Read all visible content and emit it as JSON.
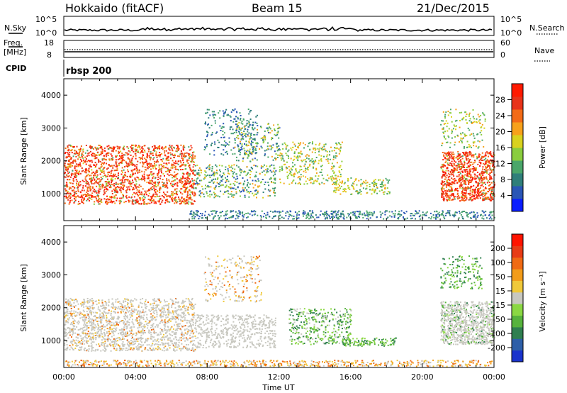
{
  "header": {
    "station": "Hokkaido (fitACF)",
    "beam": "Beam 15",
    "date": "21/Dec/2015"
  },
  "top_panels": {
    "nsky_label": "N.Sky",
    "nsky_ticks": [
      "10^5",
      "10^0"
    ],
    "nsearch_label": "N.Search",
    "freq_label_1": "Freq.",
    "freq_label_2": "[MHz]",
    "freq_ticks": [
      "18",
      "8"
    ],
    "nave_label": "Nave",
    "nave_ticks": [
      "60",
      "0"
    ],
    "cpid_label": "CPID",
    "cpid_value": "rbsp 200"
  },
  "colors": {
    "power_scale": [
      "#0a1eff",
      "#2a56b6",
      "#2f7f7a",
      "#4aa66a",
      "#8acd3e",
      "#d9d21e",
      "#f7a11b",
      "#f36b17",
      "#e8331a",
      "#ff1a00"
    ],
    "velocity_scale": [
      "#1a33cc",
      "#2e5fa8",
      "#2f7f50",
      "#57b33d",
      "#8bd843",
      "#c8c8c0",
      "#f0c93a",
      "#f29c1a",
      "#f06a14",
      "#e83b16",
      "#ff1400"
    ]
  },
  "chart_data": [
    {
      "type": "heatmap",
      "title": "Power",
      "ylabel": "Slant Range [km]",
      "yticks": [
        "1000",
        "2000",
        "3000",
        "4000"
      ],
      "xticks": [
        "00:00",
        "04:00",
        "08:00",
        "12:00",
        "16:00",
        "20:00",
        "00:00"
      ],
      "xlim": [
        0,
        24
      ],
      "ylim": [
        180,
        4500
      ],
      "colorbar_label": "Power [dB]",
      "colorbar_ticks": [
        "4",
        "8",
        "12",
        "16",
        "20",
        "24",
        "28"
      ]
    },
    {
      "type": "heatmap",
      "title": "Velocity",
      "ylabel": "Slant Range [km]",
      "yticks": [
        "1000",
        "2000",
        "3000",
        "4000"
      ],
      "xticks": [
        "00:00",
        "04:00",
        "08:00",
        "12:00",
        "16:00",
        "20:00",
        "00:00"
      ],
      "xlim": [
        0,
        24
      ],
      "ylim": [
        180,
        4500
      ],
      "xlabel": "Time UT",
      "colorbar_label": "Velocity [m s⁻¹]",
      "colorbar_ticks": [
        "200",
        "100",
        "50",
        "15",
        "-15",
        "-50",
        "-100",
        "-200"
      ]
    }
  ]
}
